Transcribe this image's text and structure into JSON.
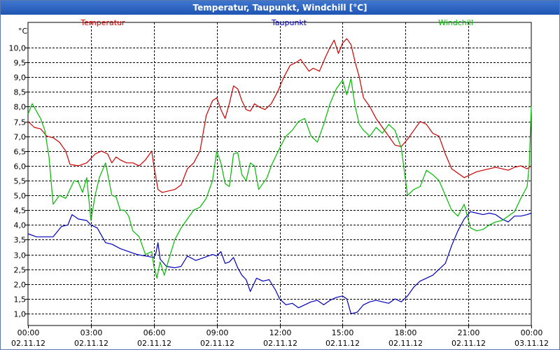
{
  "window": {
    "title": "Temperatur, Taupunkt, Windchill [°C]"
  },
  "chart_data": {
    "type": "line",
    "title": "Temperatur, Taupunkt, Windchill [°C]",
    "ylabel": "°C",
    "xlabel": "",
    "ylim": [
      0.6,
      10.85
    ],
    "xlim": [
      0,
      24
    ],
    "y_ticks": [
      1.0,
      1.5,
      2.0,
      2.5,
      3.0,
      3.5,
      4.0,
      4.5,
      5.0,
      5.5,
      6.0,
      6.5,
      7.0,
      7.5,
      8.0,
      8.5,
      9.0,
      9.5,
      10.0
    ],
    "y_tick_labels": [
      "1,0",
      "1,5",
      "2,0",
      "2,5",
      "3,0",
      "3,5",
      "4,0",
      "4,5",
      "5,0",
      "5,5",
      "6,0",
      "6,5",
      "7,0",
      "7,5",
      "8,0",
      "8,5",
      "9,0",
      "9,5",
      "10,0"
    ],
    "x_ticks": [
      0,
      3,
      6,
      9,
      12,
      15,
      18,
      21,
      24
    ],
    "x_tick_labels": [
      {
        "time": "00:00",
        "date": "02.11.12"
      },
      {
        "time": "03:00",
        "date": "02.11.12"
      },
      {
        "time": "06:00",
        "date": "02.11.12"
      },
      {
        "time": "09:00",
        "date": "02.11.12"
      },
      {
        "time": "12:00",
        "date": "02.11.12"
      },
      {
        "time": "15:00",
        "date": "02.11.12"
      },
      {
        "time": "18:00",
        "date": "02.11.12"
      },
      {
        "time": "21:00",
        "date": "02.11.12"
      },
      {
        "time": "00:00",
        "date": "03.11.12"
      }
    ],
    "grid": true,
    "series": [
      {
        "name": "Temperatur",
        "color": "#cc0000",
        "x": [
          0,
          0.3,
          0.6,
          0.9,
          1.2,
          1.5,
          1.8,
          2.0,
          2.4,
          2.8,
          3.2,
          3.5,
          3.8,
          4.0,
          4.2,
          4.4,
          4.7,
          5.0,
          5.3,
          5.6,
          5.9,
          6.0,
          6.2,
          6.4,
          6.7,
          7.0,
          7.3,
          7.6,
          7.9,
          8.2,
          8.5,
          8.8,
          9.0,
          9.2,
          9.4,
          9.6,
          9.8,
          10.0,
          10.2,
          10.4,
          10.6,
          10.8,
          11.0,
          11.3,
          11.6,
          11.9,
          12.2,
          12.5,
          12.8,
          13.0,
          13.2,
          13.4,
          13.6,
          13.9,
          14.2,
          14.4,
          14.6,
          14.8,
          15.0,
          15.2,
          15.4,
          15.6,
          15.8,
          16.0,
          16.3,
          16.6,
          16.9,
          17.2,
          17.5,
          17.8,
          18.1,
          18.4,
          18.7,
          19.0,
          19.3,
          19.6,
          19.9,
          20.2,
          20.5,
          20.8,
          21.1,
          21.4,
          21.7,
          22.0,
          22.3,
          22.6,
          22.9,
          23.2,
          23.5,
          23.8,
          24.0
        ],
        "values": [
          7.5,
          7.3,
          7.25,
          7.0,
          6.95,
          6.8,
          6.5,
          6.05,
          6.0,
          6.1,
          6.4,
          6.5,
          6.4,
          6.1,
          6.3,
          6.2,
          6.1,
          6.1,
          6.0,
          6.2,
          6.5,
          6.0,
          5.2,
          5.1,
          5.15,
          5.2,
          5.35,
          5.9,
          6.1,
          6.5,
          7.7,
          8.2,
          8.3,
          7.9,
          7.6,
          8.1,
          8.7,
          8.6,
          8.2,
          7.9,
          7.85,
          8.1,
          8.0,
          7.9,
          8.1,
          8.5,
          9.0,
          9.4,
          9.5,
          9.6,
          9.4,
          9.2,
          9.3,
          9.2,
          9.7,
          10.0,
          10.25,
          9.8,
          10.15,
          10.3,
          10.1,
          9.5,
          9.0,
          8.3,
          8.0,
          7.6,
          7.3,
          7.0,
          6.7,
          6.65,
          6.9,
          7.2,
          7.5,
          7.4,
          7.1,
          7.0,
          6.4,
          5.9,
          5.75,
          5.6,
          5.7,
          5.8,
          5.85,
          5.9,
          5.95,
          5.9,
          5.85,
          5.95,
          6.0,
          5.9,
          6.0
        ]
      },
      {
        "name": "Taupunkt",
        "color": "#0000bb",
        "x": [
          0,
          0.4,
          0.8,
          1.2,
          1.6,
          1.9,
          2.1,
          2.4,
          2.8,
          3.0,
          3.3,
          3.7,
          4.0,
          4.4,
          4.8,
          5.2,
          5.6,
          6.0,
          6.1,
          6.2,
          6.3,
          6.6,
          7.0,
          7.3,
          7.6,
          8.0,
          8.4,
          8.8,
          9.0,
          9.2,
          9.4,
          9.6,
          9.8,
          10.0,
          10.2,
          10.4,
          10.6,
          10.9,
          11.2,
          11.5,
          11.8,
          12.0,
          12.3,
          12.6,
          12.9,
          13.2,
          13.5,
          13.8,
          14.1,
          14.4,
          14.7,
          15.0,
          15.2,
          15.4,
          15.7,
          16.0,
          16.3,
          16.6,
          16.9,
          17.2,
          17.5,
          17.8,
          18.1,
          18.4,
          18.7,
          19.0,
          19.3,
          19.6,
          19.9,
          20.2,
          20.5,
          20.8,
          21.1,
          21.4,
          21.7,
          22.0,
          22.3,
          22.6,
          22.9,
          23.2,
          23.5,
          23.8,
          24.0
        ],
        "values": [
          3.7,
          3.6,
          3.6,
          3.6,
          3.95,
          4.0,
          4.35,
          4.2,
          4.15,
          4.0,
          3.9,
          3.4,
          3.35,
          3.2,
          3.1,
          3.0,
          2.95,
          2.9,
          3.05,
          3.4,
          2.85,
          2.6,
          2.55,
          2.6,
          2.95,
          2.8,
          2.9,
          3.0,
          2.95,
          3.1,
          2.7,
          2.75,
          2.9,
          2.55,
          2.3,
          2.15,
          1.75,
          2.2,
          2.1,
          2.15,
          1.8,
          1.5,
          1.3,
          1.35,
          1.2,
          1.3,
          1.4,
          1.45,
          1.3,
          1.45,
          1.55,
          1.6,
          1.5,
          1.0,
          1.05,
          1.3,
          1.4,
          1.45,
          1.4,
          1.35,
          1.5,
          1.4,
          1.6,
          1.9,
          2.1,
          2.2,
          2.3,
          2.5,
          2.7,
          3.3,
          3.8,
          4.2,
          4.45,
          4.4,
          4.35,
          4.4,
          4.35,
          4.2,
          4.1,
          4.3,
          4.3,
          4.35,
          4.4
        ]
      },
      {
        "name": "Windchill",
        "color": "#00bb00",
        "x": [
          0,
          0.2,
          0.4,
          0.6,
          0.8,
          1.0,
          1.2,
          1.5,
          1.8,
          2.0,
          2.2,
          2.4,
          2.6,
          2.8,
          3.0,
          3.2,
          3.4,
          3.7,
          4.0,
          4.2,
          4.4,
          4.6,
          4.8,
          5.0,
          5.3,
          5.6,
          5.9,
          6.0,
          6.15,
          6.3,
          6.5,
          6.7,
          7.0,
          7.3,
          7.6,
          7.9,
          8.2,
          8.5,
          8.8,
          9.0,
          9.2,
          9.4,
          9.6,
          9.8,
          10.0,
          10.2,
          10.4,
          10.6,
          10.8,
          11.0,
          11.2,
          11.4,
          11.6,
          11.8,
          12.0,
          12.3,
          12.6,
          12.9,
          13.2,
          13.5,
          13.8,
          14.1,
          14.4,
          14.7,
          15.0,
          15.2,
          15.4,
          15.6,
          15.8,
          16.0,
          16.3,
          16.6,
          16.9,
          17.2,
          17.5,
          17.8,
          18.1,
          18.4,
          18.7,
          19.0,
          19.3,
          19.6,
          19.9,
          20.2,
          20.5,
          20.8,
          21.1,
          21.4,
          21.7,
          22.0,
          22.3,
          22.6,
          22.9,
          23.2,
          23.5,
          23.8,
          23.9,
          24.0
        ],
        "values": [
          7.75,
          8.1,
          7.85,
          7.6,
          7.2,
          6.3,
          4.7,
          5.0,
          4.9,
          5.2,
          5.5,
          5.45,
          5.1,
          5.6,
          4.15,
          5.0,
          5.6,
          6.1,
          5.0,
          4.95,
          4.5,
          4.5,
          4.3,
          3.8,
          3.6,
          3.0,
          3.1,
          2.6,
          2.2,
          2.75,
          2.3,
          2.8,
          3.5,
          3.9,
          4.2,
          4.5,
          4.6,
          4.9,
          5.5,
          6.5,
          6.1,
          5.4,
          5.3,
          6.4,
          6.45,
          5.7,
          5.5,
          6.1,
          6.0,
          5.2,
          5.4,
          5.6,
          6.0,
          6.3,
          6.6,
          7.0,
          7.2,
          7.5,
          7.6,
          7.0,
          6.8,
          7.4,
          8.1,
          8.6,
          8.9,
          8.4,
          8.95,
          8.0,
          7.4,
          7.2,
          7.0,
          7.3,
          7.1,
          7.4,
          7.2,
          6.6,
          5.0,
          5.2,
          5.3,
          5.85,
          5.7,
          5.5,
          5.0,
          4.5,
          4.3,
          4.7,
          3.9,
          3.8,
          3.85,
          4.0,
          4.1,
          4.15,
          4.3,
          4.45,
          4.9,
          5.3,
          6.0,
          8.0
        ]
      }
    ]
  }
}
